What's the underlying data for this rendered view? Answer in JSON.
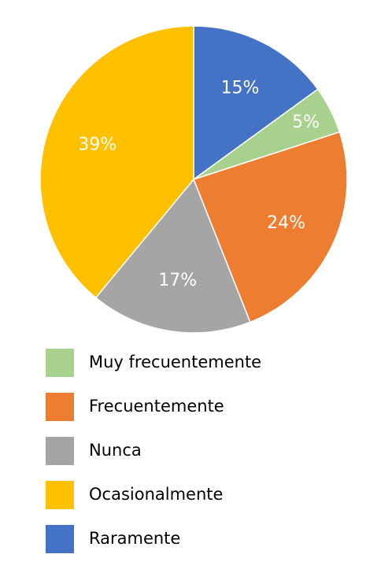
{
  "chart_data": {
    "type": "pie",
    "slices": [
      {
        "label": "Raramente",
        "value": 15,
        "display": "15%",
        "color": "#4472C4"
      },
      {
        "label": "Muy frecuentemente",
        "value": 5,
        "display": "5%",
        "color": "#A9D18E"
      },
      {
        "label": "Frecuentemente",
        "value": 24,
        "display": "24%",
        "color": "#ED7D31"
      },
      {
        "label": "Nunca",
        "value": 17,
        "display": "17%",
        "color": "#A5A5A5"
      },
      {
        "label": "Ocasionalmente",
        "value": 39,
        "display": "39%",
        "color": "#FFC000"
      }
    ],
    "legend": [
      {
        "label": "Muy frecuentemente",
        "color": "#A9D18E"
      },
      {
        "label": "Frecuentemente",
        "color": "#ED7D31"
      },
      {
        "label": "Nunca",
        "color": "#A5A5A5"
      },
      {
        "label": "Ocasionalmente",
        "color": "#FFC000"
      },
      {
        "label": "Raramente",
        "color": "#4472C4"
      }
    ],
    "legend_position": "bottom",
    "start_angle": "12 o'clock",
    "direction": "clockwise"
  }
}
